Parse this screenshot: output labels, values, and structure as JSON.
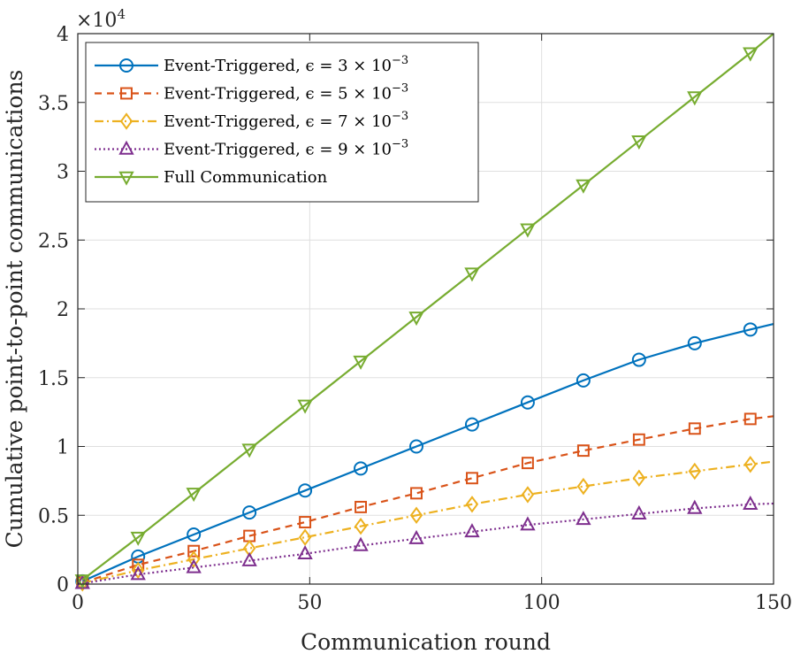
{
  "chart_data": {
    "type": "line",
    "xlabel": "Communication round",
    "ylabel": "Cumulative point-to-point communications",
    "xlim": [
      0,
      150
    ],
    "ylim": [
      0,
      40000
    ],
    "y_scale_label": "×10",
    "y_scale_exponent": "4",
    "grid": true,
    "legend_position": "top-left",
    "x_ticks": [
      0,
      50,
      100,
      150
    ],
    "x_tick_labels": [
      "0",
      "50",
      "100",
      "150"
    ],
    "y_ticks": [
      0,
      5000,
      10000,
      15000,
      20000,
      25000,
      30000,
      35000,
      40000
    ],
    "y_tick_labels": [
      "0",
      "0.5",
      "1",
      "1.5",
      "2",
      "2.5",
      "3",
      "3.5",
      "4"
    ],
    "marker_x": [
      1,
      13,
      25,
      37,
      49,
      61,
      73,
      85,
      97,
      109,
      121,
      133,
      145
    ],
    "series": [
      {
        "name": "Event-Triggered, ϵ = 3 × 10",
        "exponent": "−3",
        "color": "#0072BD",
        "dash": "",
        "marker": "circle",
        "x": [
          1,
          13,
          25,
          37,
          49,
          61,
          73,
          85,
          97,
          109,
          121,
          133,
          145,
          150
        ],
        "values": [
          200,
          2000,
          3600,
          5200,
          6800,
          8400,
          10000,
          11600,
          13200,
          14800,
          16300,
          17500,
          18500,
          18900
        ]
      },
      {
        "name": "Event-Triggered, ϵ = 5 × 10",
        "exponent": "−3",
        "color": "#D95319",
        "dash": "8 6",
        "marker": "square",
        "x": [
          1,
          13,
          25,
          37,
          49,
          61,
          73,
          85,
          97,
          109,
          121,
          133,
          145,
          150
        ],
        "values": [
          100,
          1400,
          2400,
          3500,
          4500,
          5600,
          6600,
          7700,
          8800,
          9700,
          10500,
          11300,
          12000,
          12200
        ]
      },
      {
        "name": "Event-Triggered, ϵ = 7 × 10",
        "exponent": "−3",
        "color": "#EDB120",
        "dash": "10 4 2 4",
        "marker": "diamond",
        "x": [
          1,
          13,
          25,
          37,
          49,
          61,
          73,
          85,
          97,
          109,
          121,
          133,
          145,
          150
        ],
        "values": [
          80,
          1000,
          1800,
          2600,
          3400,
          4200,
          5000,
          5800,
          6500,
          7100,
          7700,
          8200,
          8700,
          8900
        ]
      },
      {
        "name": "Event-Triggered, ϵ = 9 × 10",
        "exponent": "−3",
        "color": "#7E2F8E",
        "dash": "2 3",
        "marker": "triangle-up",
        "x": [
          1,
          13,
          25,
          37,
          49,
          61,
          73,
          85,
          97,
          109,
          121,
          133,
          145,
          150
        ],
        "values": [
          50,
          700,
          1200,
          1700,
          2200,
          2800,
          3300,
          3800,
          4300,
          4700,
          5100,
          5500,
          5800,
          5850
        ]
      },
      {
        "name": "Full Communication",
        "exponent": "",
        "color": "#77AC30",
        "dash": "",
        "marker": "triangle-down",
        "x": [
          1,
          13,
          25,
          37,
          49,
          61,
          73,
          85,
          97,
          109,
          121,
          133,
          145,
          150
        ],
        "values": [
          300,
          3400,
          6600,
          9800,
          13000,
          16200,
          19400,
          22600,
          25800,
          29000,
          32200,
          35400,
          38600,
          40000
        ]
      }
    ]
  }
}
